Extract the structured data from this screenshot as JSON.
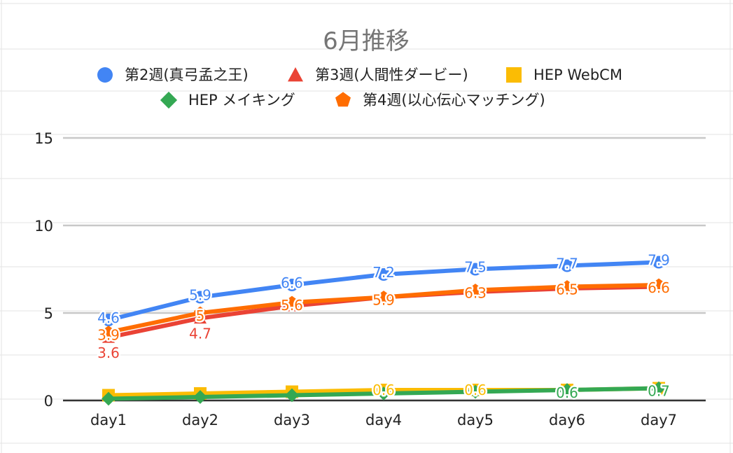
{
  "chart_data": {
    "type": "line",
    "title": "6月推移",
    "xlabel": "",
    "ylabel": "",
    "categories": [
      "day1",
      "day2",
      "day3",
      "day4",
      "day5",
      "day6",
      "day7"
    ],
    "ylim": [
      0,
      15
    ],
    "yticks": [
      0,
      5,
      10,
      15
    ],
    "grid": true,
    "legend_position": "top",
    "series": [
      {
        "name": "第2週(真弓孟之王)",
        "color": "#4285f4",
        "marker": "circle",
        "values": [
          4.6,
          5.9,
          6.6,
          7.2,
          7.5,
          7.7,
          7.9
        ],
        "labels": [
          "4.6",
          "5.9",
          "6.6",
          "7.2",
          "7.5",
          "7.7",
          "7.9"
        ]
      },
      {
        "name": "第3週(人間性ダービー)",
        "color": "#ea4335",
        "marker": "triangle",
        "values": [
          3.6,
          4.7,
          5.4,
          5.9,
          6.2,
          6.4,
          6.5
        ],
        "labels": [
          "3.6",
          "4.7",
          "",
          "",
          "",
          "",
          ""
        ]
      },
      {
        "name": "HEP WebCM",
        "color": "#fbbc04",
        "marker": "square",
        "values": [
          0.3,
          0.4,
          0.5,
          0.6,
          0.6,
          0.6,
          0.7
        ],
        "labels": [
          "",
          "",
          "",
          "0.6",
          "0.6",
          "",
          ""
        ]
      },
      {
        "name": "HEP メイキング",
        "color": "#34a853",
        "marker": "diamond",
        "values": [
          0.1,
          0.2,
          0.3,
          0.4,
          0.5,
          0.6,
          0.7
        ],
        "labels": [
          "",
          "",
          "",
          "",
          "",
          "0.6",
          "0.7"
        ]
      },
      {
        "name": "第4週(以心伝心マッチング)",
        "color": "#ff6d01",
        "marker": "pentagon",
        "values": [
          3.9,
          5.0,
          5.6,
          5.9,
          6.3,
          6.5,
          6.6
        ],
        "labels": [
          "3.9",
          "5",
          "5.6",
          "5.9",
          "6.3",
          "6.5",
          "6.6"
        ]
      }
    ]
  }
}
